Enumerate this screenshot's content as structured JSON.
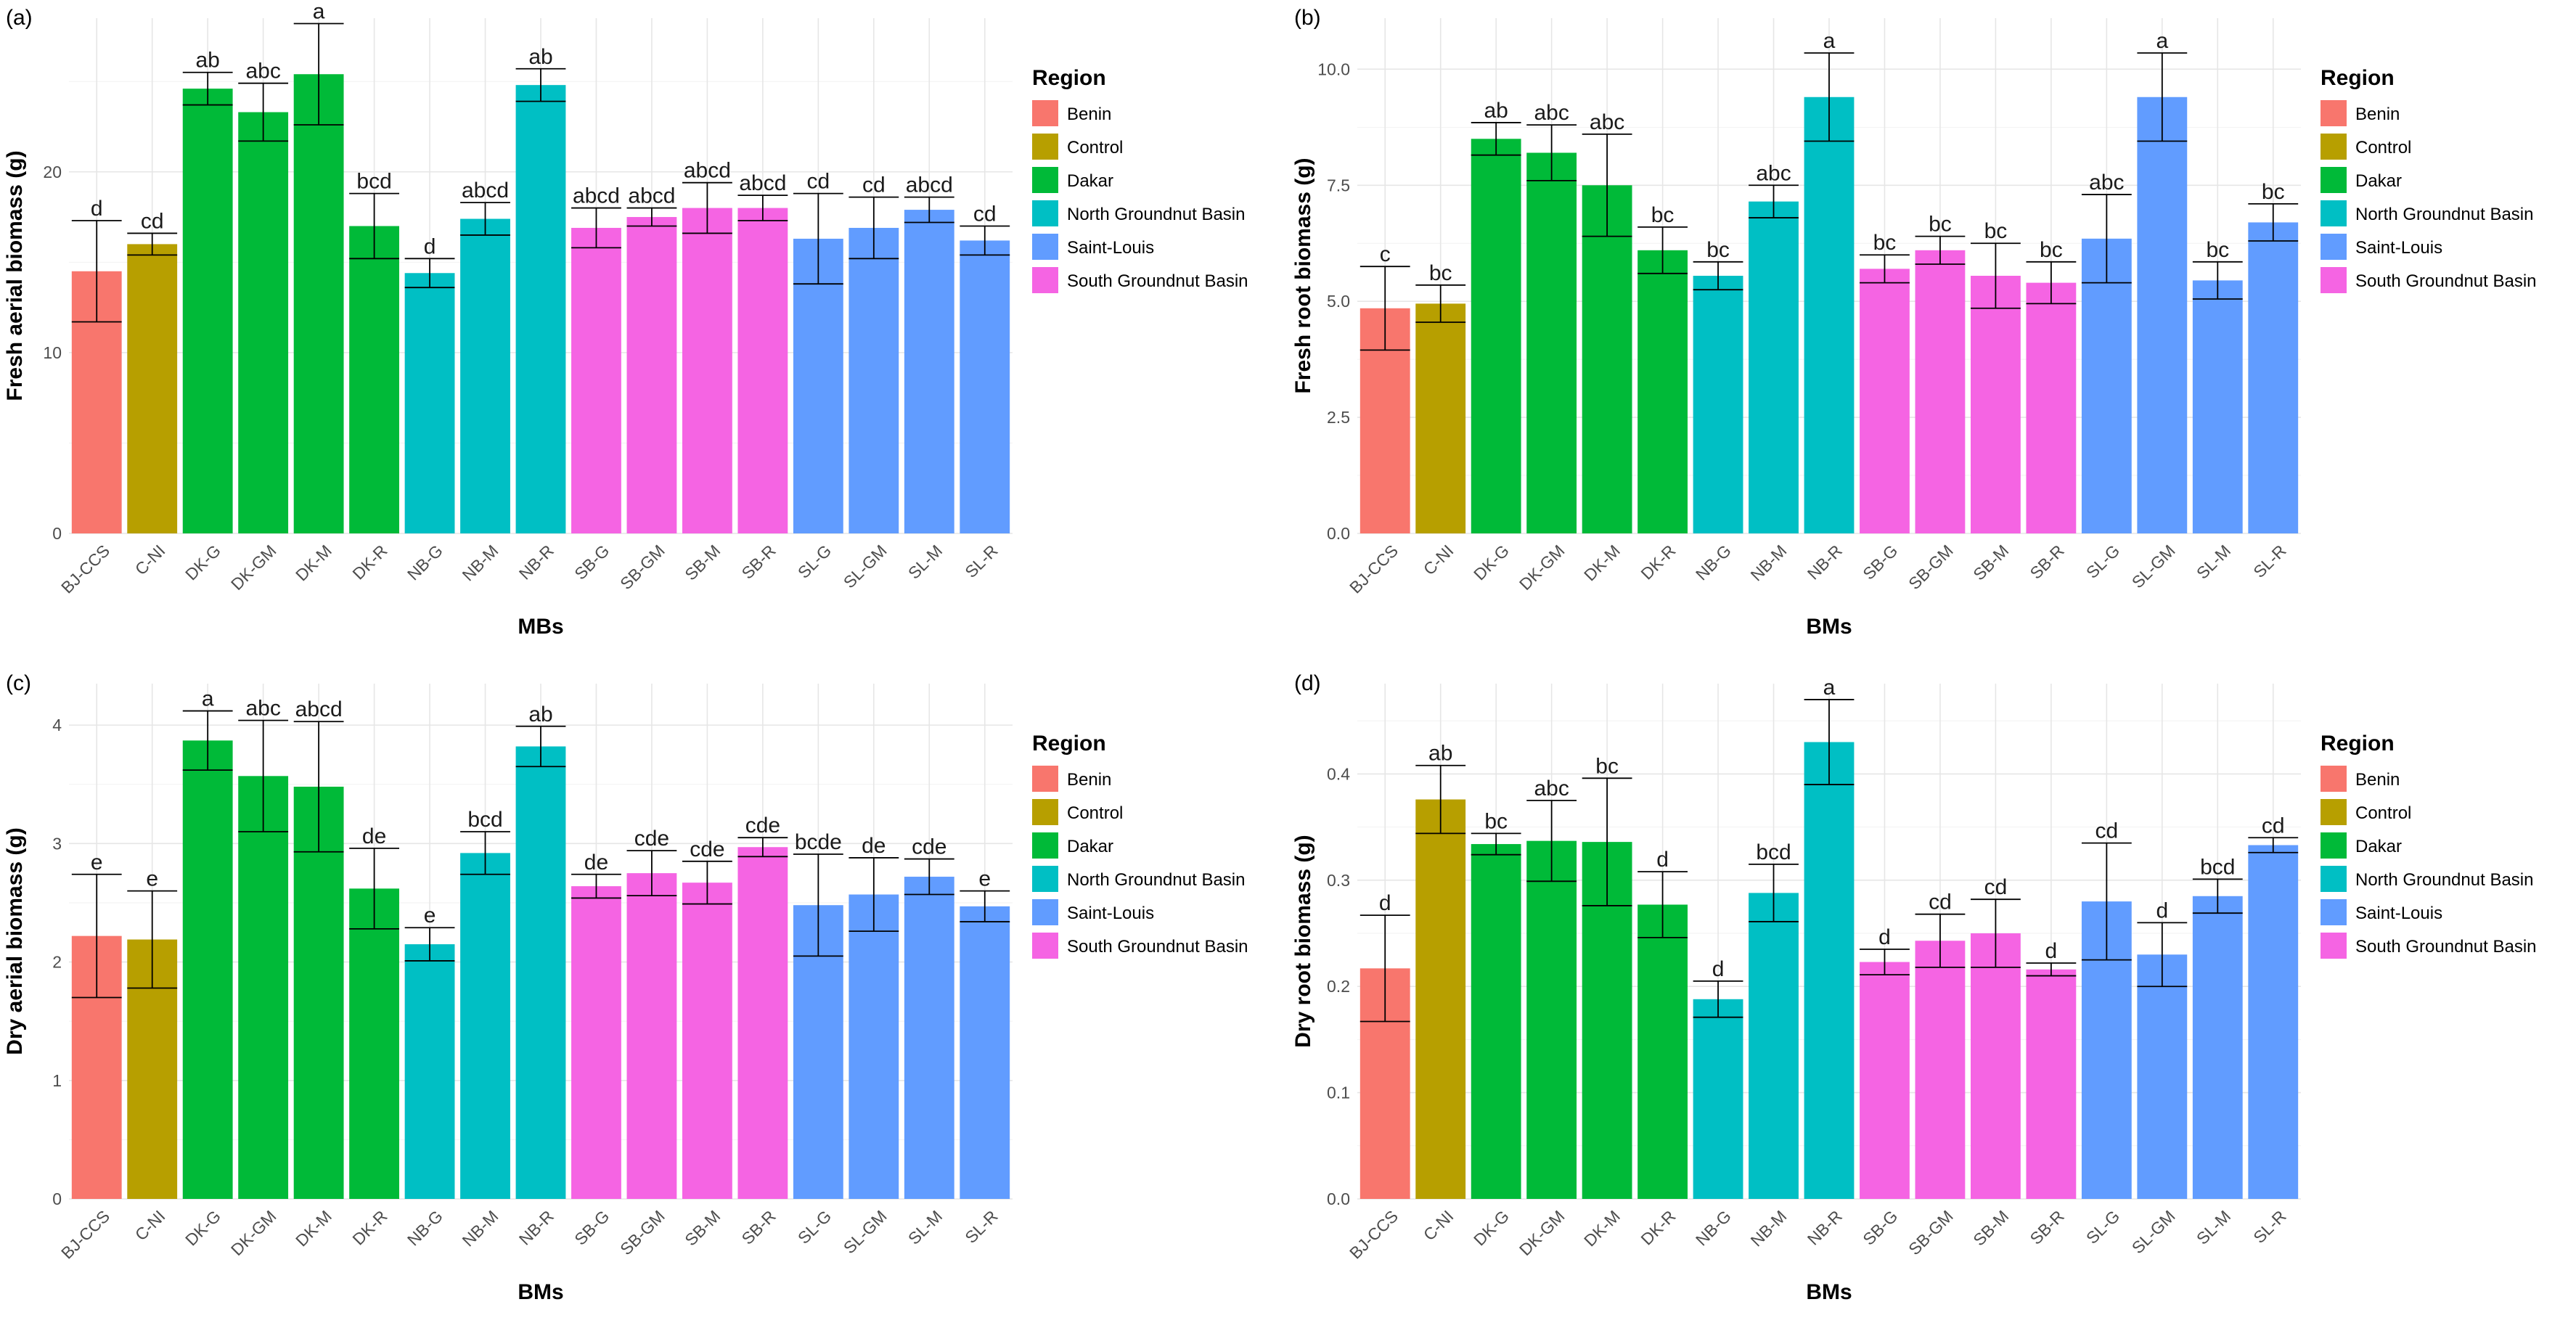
{
  "legend": {
    "title": "Region",
    "entries": [
      {
        "name": "Benin",
        "color": "#F8766D"
      },
      {
        "name": "Control",
        "color": "#B79F00"
      },
      {
        "name": "Dakar",
        "color": "#00BA38"
      },
      {
        "name": "North Groundnut Basin",
        "color": "#00BFC4"
      },
      {
        "name": "Saint-Louis",
        "color": "#619CFF"
      },
      {
        "name": "South Groundnut Basin",
        "color": "#F564E3"
      }
    ]
  },
  "chart_data": [
    {
      "type": "bar",
      "panel_label": "(a)",
      "xlabel": "MBs",
      "ylabel": "Fresh aerial biomass (g)",
      "ylim": [
        0,
        28.5
      ],
      "yticks": [
        0,
        10,
        20
      ],
      "categories": [
        "BJ-CCS",
        "C-NI",
        "DK-G",
        "DK-GM",
        "DK-M",
        "DK-R",
        "NB-G",
        "NB-M",
        "NB-R",
        "SB-G",
        "SB-GM",
        "SB-M",
        "SB-R",
        "SL-G",
        "SL-GM",
        "SL-M",
        "SL-R"
      ],
      "regions": [
        "Benin",
        "Control",
        "Dakar",
        "Dakar",
        "Dakar",
        "Dakar",
        "North Groundnut Basin",
        "North Groundnut Basin",
        "North Groundnut Basin",
        "South Groundnut Basin",
        "South Groundnut Basin",
        "South Groundnut Basin",
        "South Groundnut Basin",
        "Saint-Louis",
        "Saint-Louis",
        "Saint-Louis",
        "Saint-Louis"
      ],
      "values": [
        14.5,
        16.0,
        24.6,
        23.3,
        25.4,
        17.0,
        14.4,
        17.4,
        24.8,
        16.9,
        17.5,
        18.0,
        18.0,
        16.3,
        16.9,
        17.9,
        16.2
      ],
      "error": [
        2.8,
        0.6,
        0.9,
        1.6,
        2.8,
        1.8,
        0.8,
        0.9,
        0.9,
        1.1,
        0.5,
        1.4,
        0.7,
        2.5,
        1.7,
        0.7,
        0.8
      ],
      "labels": [
        "d",
        "cd",
        "ab",
        "abc",
        "a",
        "bcd",
        "d",
        "abcd",
        "ab",
        "abcd",
        "abcd",
        "abcd",
        "abcd",
        "cd",
        "cd",
        "abcd",
        "cd"
      ]
    },
    {
      "type": "bar",
      "panel_label": "(b)",
      "xlabel": "BMs",
      "ylabel": "Fresh root biomass (g)",
      "ylim": [
        0,
        11.1
      ],
      "yticks": [
        0.0,
        2.5,
        5.0,
        7.5,
        10.0
      ],
      "categories": [
        "BJ-CCS",
        "C-NI",
        "DK-G",
        "DK-GM",
        "DK-M",
        "DK-R",
        "NB-G",
        "NB-M",
        "NB-R",
        "SB-G",
        "SB-GM",
        "SB-M",
        "SB-R",
        "SL-G",
        "SL-GM",
        "SL-M",
        "SL-R"
      ],
      "regions": [
        "Benin",
        "Control",
        "Dakar",
        "Dakar",
        "Dakar",
        "Dakar",
        "North Groundnut Basin",
        "North Groundnut Basin",
        "North Groundnut Basin",
        "South Groundnut Basin",
        "South Groundnut Basin",
        "South Groundnut Basin",
        "South Groundnut Basin",
        "Saint-Louis",
        "Saint-Louis",
        "Saint-Louis",
        "Saint-Louis"
      ],
      "values": [
        4.85,
        4.95,
        8.5,
        8.2,
        7.5,
        6.1,
        5.55,
        7.15,
        9.4,
        5.7,
        6.1,
        5.55,
        5.4,
        6.35,
        9.4,
        5.45,
        6.7
      ],
      "error": [
        0.9,
        0.4,
        0.35,
        0.6,
        1.1,
        0.5,
        0.3,
        0.35,
        0.95,
        0.3,
        0.3,
        0.7,
        0.45,
        0.95,
        0.95,
        0.4,
        0.4
      ],
      "labels": [
        "c",
        "bc",
        "ab",
        "abc",
        "abc",
        "bc",
        "bc",
        "abc",
        "a",
        "bc",
        "bc",
        "bc",
        "bc",
        "abc",
        "a",
        "bc",
        "bc"
      ]
    },
    {
      "type": "bar",
      "panel_label": "(c)",
      "xlabel": "BMs",
      "ylabel": "Dry aerial biomass (g)",
      "ylim": [
        0,
        4.35
      ],
      "yticks": [
        0,
        1,
        2,
        3,
        4
      ],
      "categories": [
        "BJ-CCS",
        "C-NI",
        "DK-G",
        "DK-GM",
        "DK-M",
        "DK-R",
        "NB-G",
        "NB-M",
        "NB-R",
        "SB-G",
        "SB-GM",
        "SB-M",
        "SB-R",
        "SL-G",
        "SL-GM",
        "SL-M",
        "SL-R"
      ],
      "regions": [
        "Benin",
        "Control",
        "Dakar",
        "Dakar",
        "Dakar",
        "Dakar",
        "North Groundnut Basin",
        "North Groundnut Basin",
        "North Groundnut Basin",
        "South Groundnut Basin",
        "South Groundnut Basin",
        "South Groundnut Basin",
        "South Groundnut Basin",
        "Saint-Louis",
        "Saint-Louis",
        "Saint-Louis",
        "Saint-Louis"
      ],
      "values": [
        2.22,
        2.19,
        3.87,
        3.57,
        3.48,
        2.62,
        2.15,
        2.92,
        3.82,
        2.64,
        2.75,
        2.67,
        2.97,
        2.48,
        2.57,
        2.72,
        2.47
      ],
      "error": [
        0.52,
        0.41,
        0.25,
        0.47,
        0.55,
        0.34,
        0.14,
        0.18,
        0.17,
        0.1,
        0.19,
        0.18,
        0.08,
        0.43,
        0.31,
        0.15,
        0.13
      ],
      "labels": [
        "e",
        "e",
        "a",
        "abc",
        "abcd",
        "de",
        "e",
        "bcd",
        "ab",
        "de",
        "cde",
        "cde",
        "cde",
        "bcde",
        "de",
        "cde",
        "e"
      ]
    },
    {
      "type": "bar",
      "panel_label": "(d)",
      "xlabel": "BMs",
      "ylabel": "Dry root biomass (g)",
      "ylim": [
        0,
        0.485
      ],
      "yticks": [
        0.0,
        0.1,
        0.2,
        0.3,
        0.4
      ],
      "categories": [
        "BJ-CCS",
        "C-NI",
        "DK-G",
        "DK-GM",
        "DK-M",
        "DK-R",
        "NB-G",
        "NB-M",
        "NB-R",
        "SB-G",
        "SB-GM",
        "SB-M",
        "SB-R",
        "SL-G",
        "SL-GM",
        "SL-M",
        "SL-R"
      ],
      "regions": [
        "Benin",
        "Control",
        "Dakar",
        "Dakar",
        "Dakar",
        "Dakar",
        "North Groundnut Basin",
        "North Groundnut Basin",
        "North Groundnut Basin",
        "South Groundnut Basin",
        "South Groundnut Basin",
        "South Groundnut Basin",
        "South Groundnut Basin",
        "Saint-Louis",
        "Saint-Louis",
        "Saint-Louis",
        "Saint-Louis"
      ],
      "values": [
        0.217,
        0.376,
        0.334,
        0.337,
        0.336,
        0.277,
        0.188,
        0.288,
        0.43,
        0.223,
        0.243,
        0.25,
        0.216,
        0.28,
        0.23,
        0.285,
        0.333
      ],
      "error": [
        0.05,
        0.032,
        0.01,
        0.038,
        0.06,
        0.031,
        0.017,
        0.027,
        0.04,
        0.012,
        0.025,
        0.032,
        0.006,
        0.055,
        0.03,
        0.016,
        0.007
      ],
      "labels": [
        "d",
        "ab",
        "bc",
        "abc",
        "bc",
        "d",
        "d",
        "bcd",
        "a",
        "d",
        "cd",
        "cd",
        "d",
        "cd",
        "d",
        "bcd",
        "cd"
      ]
    }
  ]
}
